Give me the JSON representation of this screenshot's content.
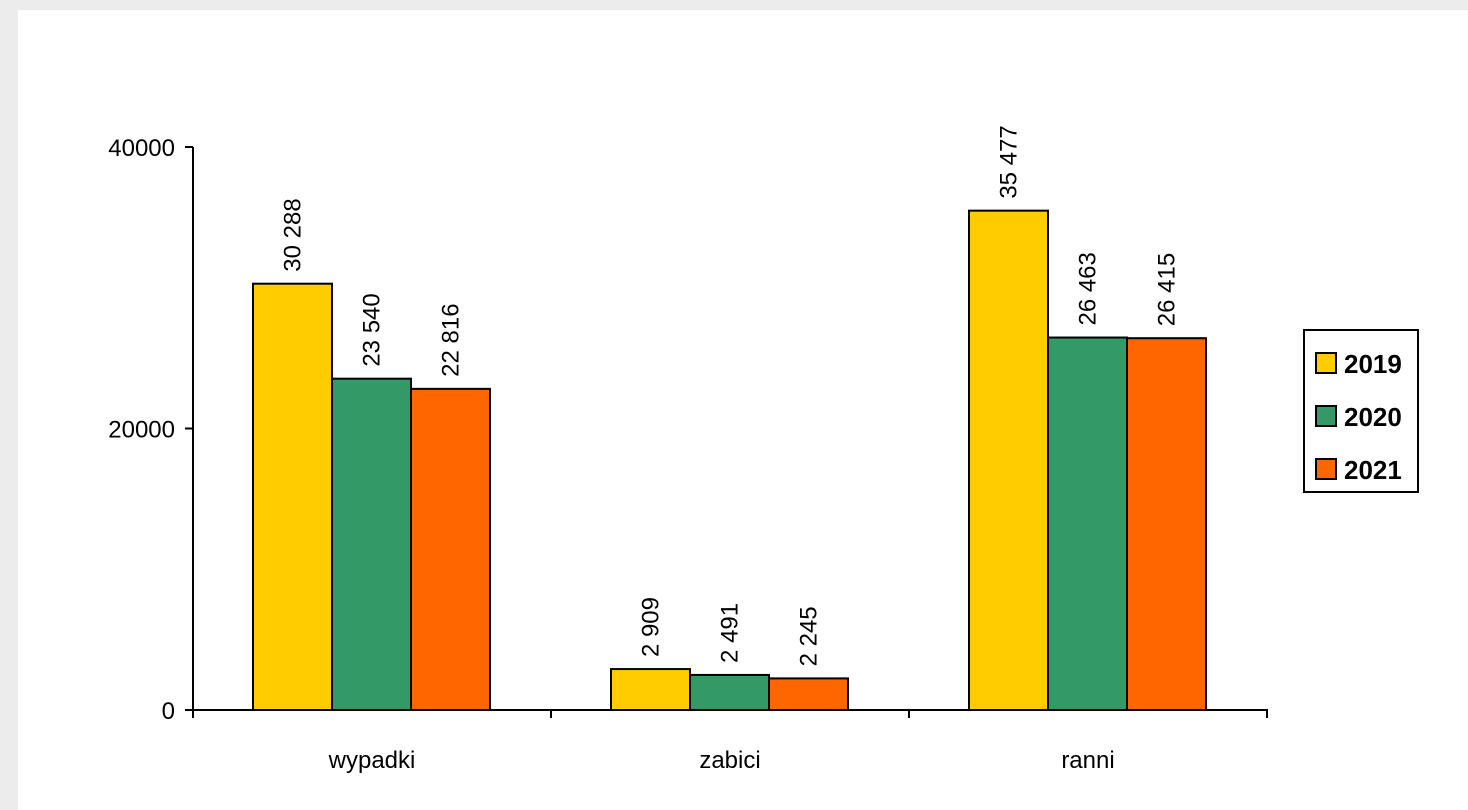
{
  "chart_data": {
    "type": "bar",
    "categories": [
      "wypadki",
      "zabici",
      "ranni"
    ],
    "series": [
      {
        "name": "2019",
        "values": [
          30288,
          2909,
          35477
        ],
        "labels": [
          "30 288",
          "2 909",
          "35 477"
        ],
        "color": "#ffcc00"
      },
      {
        "name": "2020",
        "values": [
          23540,
          2491,
          26463
        ],
        "labels": [
          "23 540",
          "2 491",
          "26 463"
        ],
        "color": "#339966"
      },
      {
        "name": "2021",
        "values": [
          22816,
          2245,
          26415
        ],
        "labels": [
          "22 816",
          "2 245",
          "26 415"
        ],
        "color": "#ff6600"
      }
    ],
    "yticks": [
      0,
      20000,
      40000
    ],
    "ylim": [
      0,
      40000
    ],
    "title": "",
    "xlabel": "",
    "ylabel": "",
    "legend": "right",
    "grid": false
  }
}
